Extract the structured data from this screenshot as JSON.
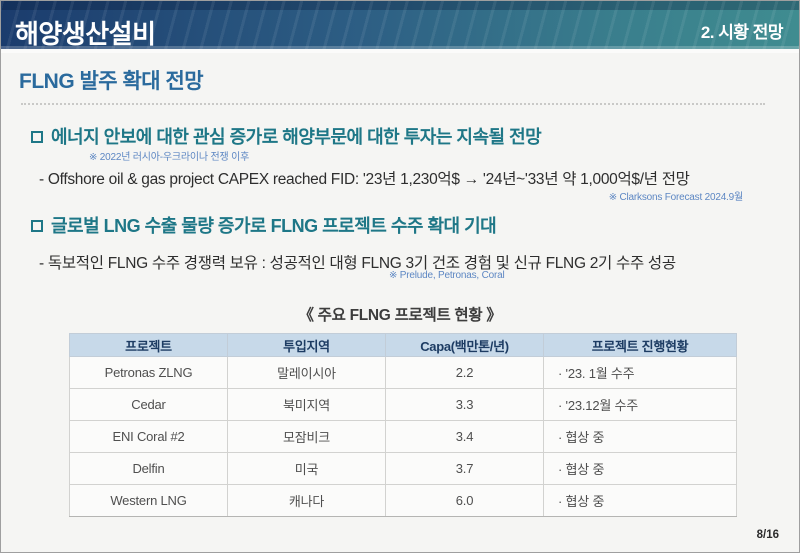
{
  "header": {
    "title": "해양생산설비",
    "section": "2. 시황 전망"
  },
  "page_title": "FLNG 발주 확대 전망",
  "sections": [
    {
      "heading": "에너지 안보에 대한 관심 증가로 해양부문에 대한 투자는 지속될 전망",
      "note": "※ 2022년 러시아-우크라이나 전쟁 이후",
      "detail": "- Offshore oil & gas project CAPEX reached FID: '23년 1,230억$ → '24년~'33년 약 1,000억$/년 전망",
      "detail_note": "※ Clarksons Forecast 2024.9월"
    },
    {
      "heading": "글로벌 LNG 수출 물량 증가로 FLNG 프로젝트 수주 확대 기대",
      "detail": "- 독보적인 FLNG 수주 경쟁력 보유 : 성공적인 대형 FLNG 3기 건조 경험 및 신규 FLNG 2기 수주 성공",
      "detail_note": "※ Prelude, Petronas, Coral"
    }
  ],
  "table": {
    "title": "《 주요 FLNG 프로젝트 현황 》",
    "headers": [
      "프로젝트",
      "투입지역",
      "Capa(백만톤/년)",
      "프로젝트 진행현황"
    ],
    "rows": [
      [
        "Petronas ZLNG",
        "말레이시아",
        "2.2",
        "· '23. 1월 수주"
      ],
      [
        "Cedar",
        "북미지역",
        "3.3",
        "· '23.12월 수주"
      ],
      [
        "ENI Coral #2",
        "모잠비크",
        "3.4",
        "· 협상 중"
      ],
      [
        "Delfin",
        "미국",
        "3.7",
        "· 협상 중"
      ],
      [
        "Western LNG",
        "캐나다",
        "6.0",
        "· 협상 중"
      ]
    ]
  },
  "page_number": "8/16",
  "colors": {
    "header_gradient_start": "#1b3c6d",
    "header_gradient_end": "#3f8c90",
    "page_title_blue": "#2a6a9d",
    "section_teal": "#1e7787",
    "note_blue": "#5d87c3",
    "table_header_bg": "#c7d9e9",
    "slide_bg": "#f5f5f3"
  }
}
